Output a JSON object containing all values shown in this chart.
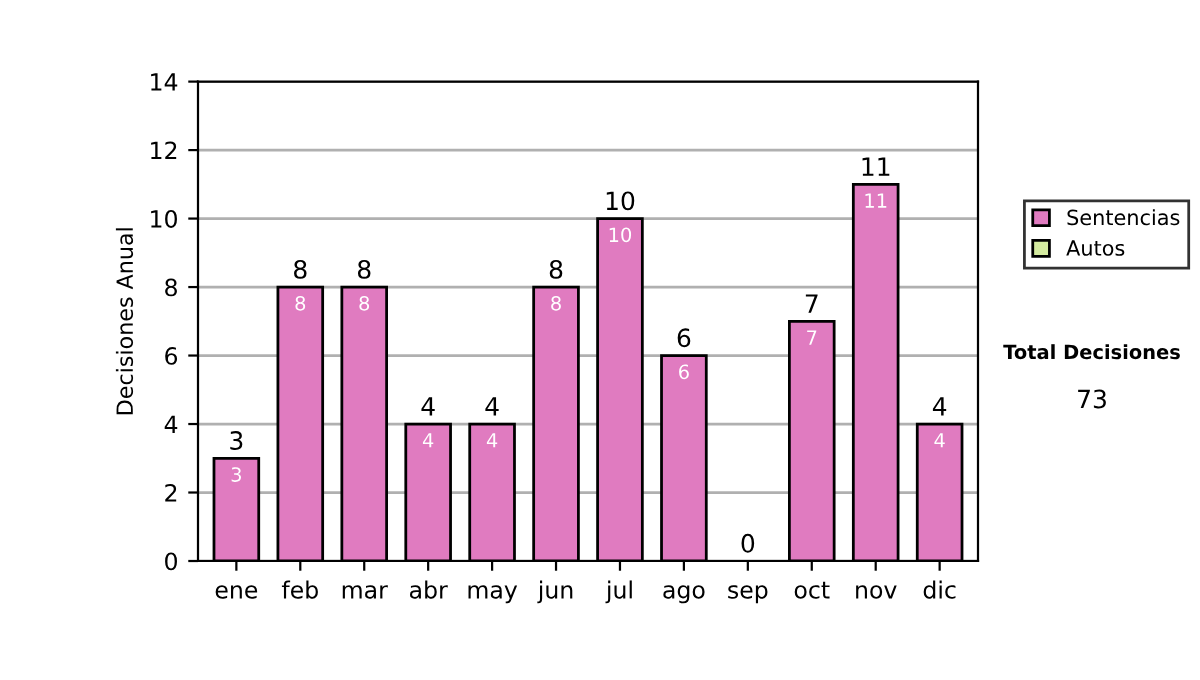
{
  "chart_data": {
    "type": "bar",
    "ylabel": "Decisiones Anual",
    "stacked": true,
    "categories": [
      "ene",
      "feb",
      "mar",
      "abr",
      "may",
      "jun",
      "jul",
      "ago",
      "sep",
      "oct",
      "nov",
      "dic"
    ],
    "series": [
      {
        "name": "Sentencias",
        "color": "#e07bc0",
        "values": [
          3,
          8,
          8,
          4,
          4,
          8,
          10,
          6,
          0,
          7,
          11,
          4
        ],
        "value_labels": [
          "3",
          "8",
          "8",
          "4",
          "4",
          "8",
          "10",
          "6",
          null,
          "7",
          "11",
          "4"
        ]
      },
      {
        "name": "Autos",
        "color": "#d4eba0",
        "values": [
          null,
          null,
          null,
          null,
          null,
          null,
          null,
          null,
          null,
          null,
          null,
          null
        ]
      }
    ],
    "totals": [
      "3",
      "8",
      "8",
      "4",
      "4",
      "8",
      "10",
      "6",
      "0",
      "7",
      "11",
      "4"
    ],
    "ylim": [
      0,
      14
    ],
    "yticks": [
      0,
      2,
      4,
      6,
      8,
      10,
      12,
      14
    ],
    "grid": "y",
    "legend": "right",
    "annotations": [
      "Total Decisiones",
      "73"
    ]
  }
}
